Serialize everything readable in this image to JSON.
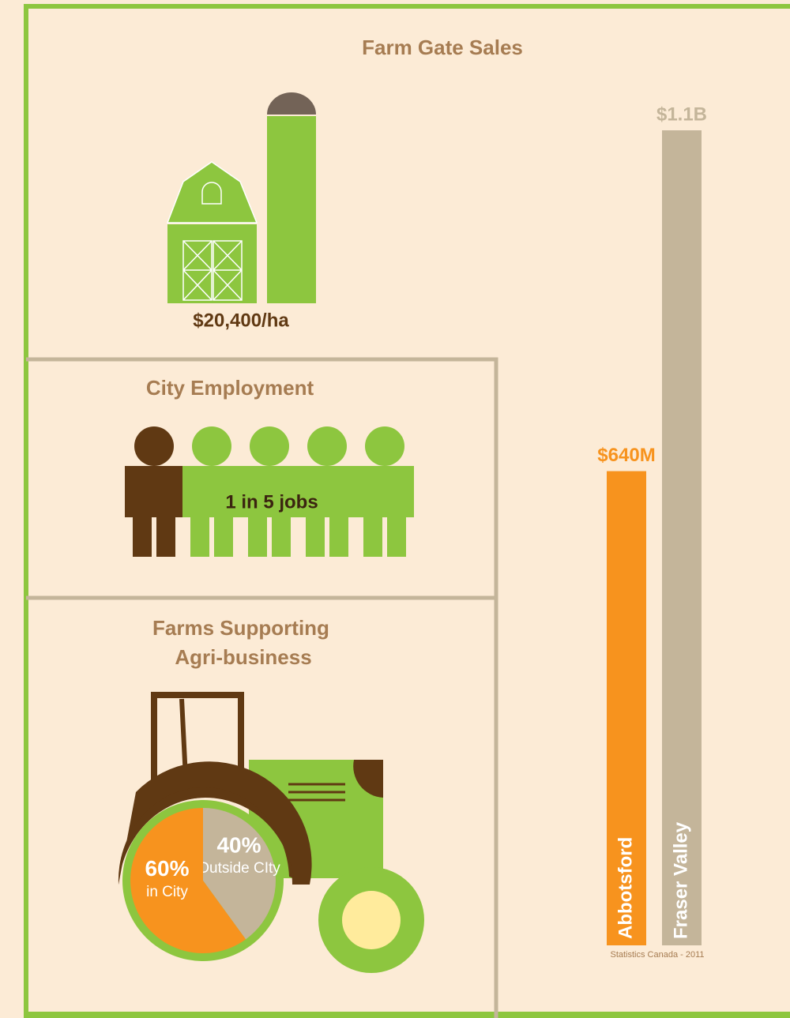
{
  "title": "Farm Gate Sales",
  "farm_gate_per_ha": "$20,400/ha",
  "employment": {
    "title": "City Employment",
    "label": "1 in 5 jobs"
  },
  "agri_business": {
    "title_lines": [
      "Farms Supporting",
      "Agri-business"
    ]
  },
  "source": "Statistics Canada - 2011",
  "chart_data": [
    {
      "type": "bar",
      "categories": [
        "Abbotsford",
        "Fraser Valley"
      ],
      "values": [
        640000000,
        1100000000
      ],
      "value_labels": [
        "$640M",
        "$1.1B"
      ],
      "colors": [
        "#f7931e",
        "#c4b59a"
      ],
      "ylim": [
        0,
        1100000000
      ]
    },
    {
      "type": "pie",
      "categories": [
        "in City",
        "Outside CIty"
      ],
      "values": [
        60,
        40
      ],
      "value_labels": [
        "60%",
        "40%"
      ],
      "colors": [
        "#f7931e",
        "#c4b59a"
      ]
    }
  ]
}
